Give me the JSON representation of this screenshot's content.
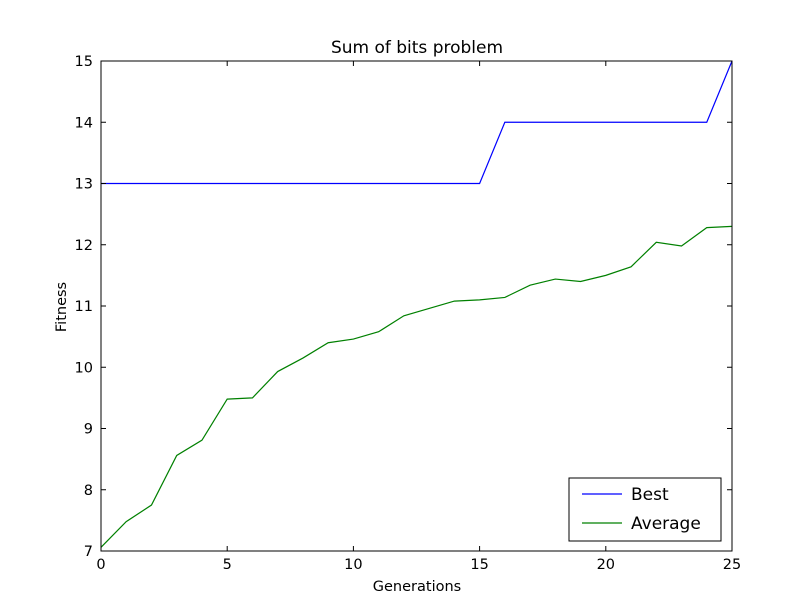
{
  "chart_data": {
    "type": "line",
    "title": "Sum of bits problem",
    "xlabel": "Generations",
    "ylabel": "Fitness",
    "xlim": [
      0,
      25
    ],
    "ylim": [
      7,
      15
    ],
    "xticks": [
      0,
      5,
      10,
      15,
      20,
      25
    ],
    "yticks": [
      7,
      8,
      9,
      10,
      11,
      12,
      13,
      14,
      15
    ],
    "grid": false,
    "legend_position": "lower-right",
    "x": [
      0,
      1,
      2,
      3,
      4,
      5,
      6,
      7,
      8,
      9,
      10,
      11,
      12,
      13,
      14,
      15,
      16,
      17,
      18,
      19,
      20,
      21,
      22,
      23,
      24,
      25
    ],
    "series": [
      {
        "name": "Best",
        "color": "#0000ff",
        "values": [
          13,
          13,
          13,
          13,
          13,
          13,
          13,
          13,
          13,
          13,
          13,
          13,
          13,
          13,
          13,
          13,
          14,
          14,
          14,
          14,
          14,
          14,
          14,
          14,
          14,
          15
        ]
      },
      {
        "name": "Average",
        "color": "#008000",
        "values": [
          7.06,
          7.48,
          7.75,
          8.56,
          8.81,
          9.48,
          9.5,
          9.93,
          10.15,
          10.4,
          10.46,
          10.58,
          10.84,
          10.96,
          11.08,
          11.1,
          11.14,
          11.34,
          11.44,
          11.4,
          11.5,
          11.64,
          12.04,
          11.98,
          12.28,
          12.3
        ]
      }
    ]
  }
}
